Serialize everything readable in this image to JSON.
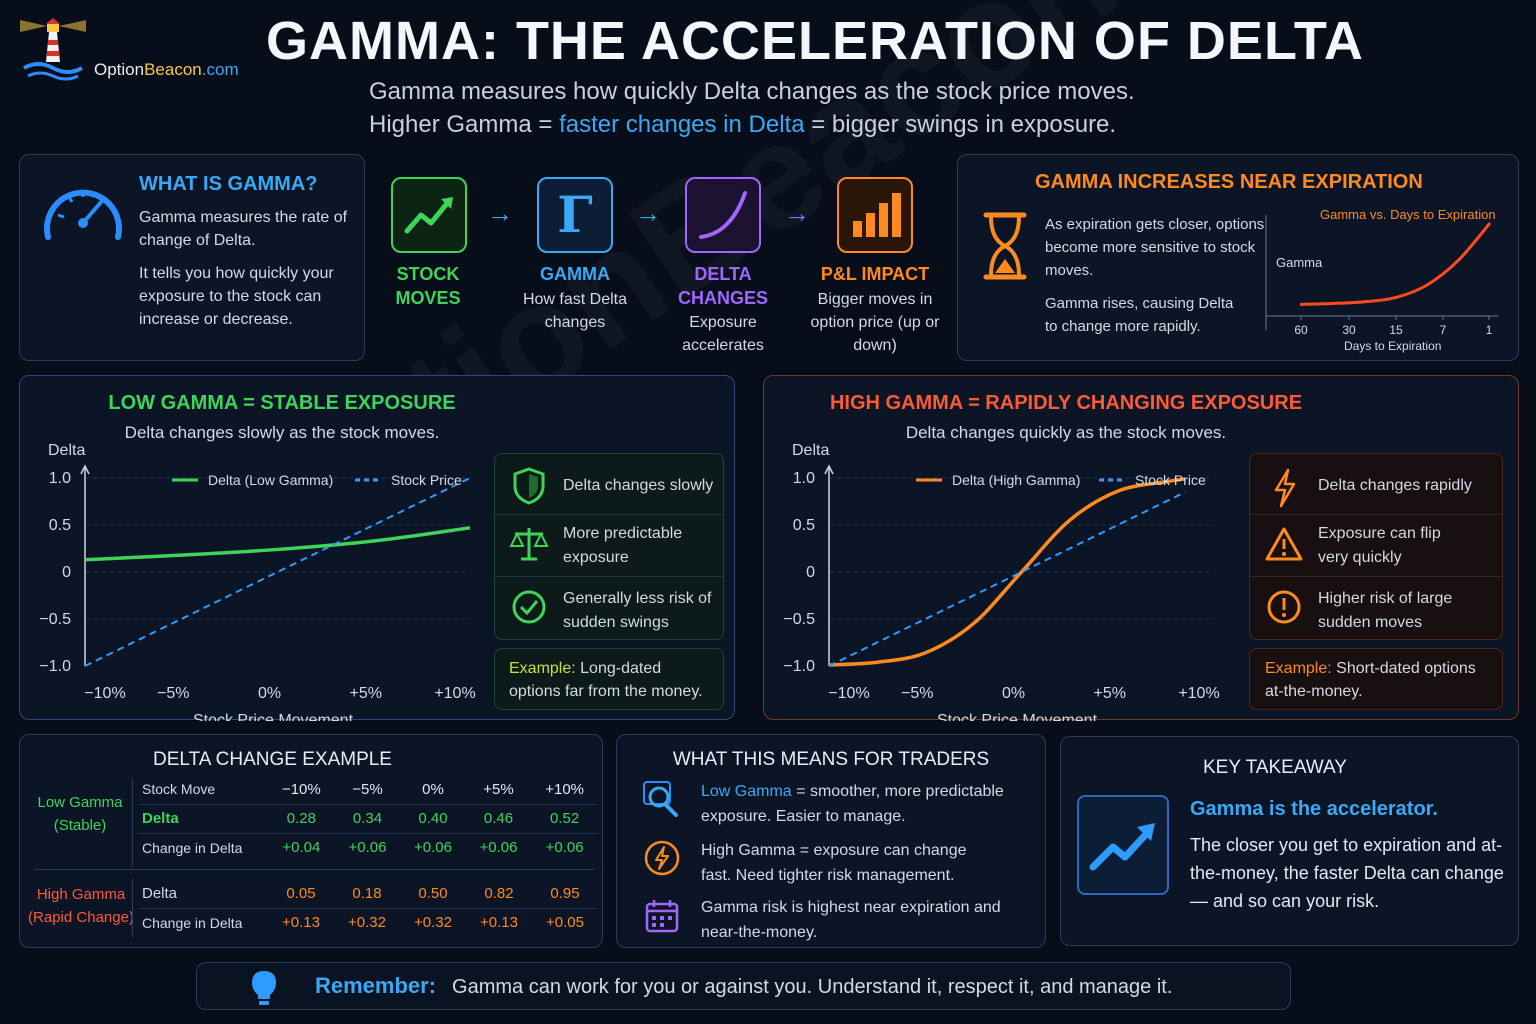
{
  "brand": {
    "name_part1": "Option",
    "name_part2": "Beacon",
    "name_part3": ".com"
  },
  "watermark": "OptionBeacon.com",
  "header": {
    "title": "GAMMA: THE ACCELERATION OF DELTA",
    "subtitle_line1": "Gamma measures how quickly Delta changes as the stock price moves.",
    "subtitle_line2_a": "Higher Gamma = ",
    "subtitle_line2_b": "faster changes in Delta",
    "subtitle_line2_c": " = bigger swings in exposure."
  },
  "what_is": {
    "title": "WHAT IS GAMMA?",
    "p1": "Gamma measures the rate of change of Delta.",
    "p2": "It tells you how quickly your exposure to the stock can increase or decrease."
  },
  "flow": [
    {
      "title": "STOCK MOVES",
      "desc": "",
      "icon": "trend-up-icon",
      "color": "#3fd35a"
    },
    {
      "title": "GAMMA",
      "desc": "How fast Delta changes",
      "icon": "gamma-icon",
      "color": "#3aa9f5"
    },
    {
      "title": "DELTA CHANGES",
      "desc": "Exposure accelerates",
      "icon": "curve-icon",
      "color": "#a066ff"
    },
    {
      "title": "P&L IMPACT",
      "desc": "Bigger moves in option price (up or down)",
      "icon": "bar-chart-icon",
      "color": "#ff8a1f"
    }
  ],
  "expiration": {
    "title": "GAMMA INCREASES NEAR EXPIRATION",
    "p1": "As expiration gets closer, options become more sensitive to stock moves.",
    "p2": "Gamma rises, causing Delta to change more rapidly.",
    "chart_title": "Gamma vs. Days to Expiration",
    "ylabel": "Gamma",
    "xlabel": "Days to Expiration",
    "ticks": [
      "60",
      "30",
      "15",
      "7",
      "1"
    ]
  },
  "low_gamma": {
    "title": "LOW GAMMA = STABLE EXPOSURE",
    "subtitle": "Delta changes slowly as the stock moves.",
    "bullets": [
      "Delta changes slowly",
      "More predictable exposure",
      "Generally less risk of sudden swings"
    ],
    "example_label": "Example:",
    "example_text": " Long-dated options far from the money."
  },
  "high_gamma": {
    "title": "HIGH GAMMA = RAPIDLY CHANGING EXPOSURE",
    "subtitle": "Delta changes quickly as the stock moves.",
    "bullets": [
      "Delta changes rapidly",
      "Exposure can flip very quickly",
      "Higher risk of large sudden moves"
    ],
    "example_label": "Example:",
    "example_text": " Short-dated options at-the-money."
  },
  "chart_data": [
    {
      "type": "line",
      "title": "",
      "xlabel": "Stock Price Movement",
      "ylabel": "Delta",
      "x_ticks": [
        "−10%",
        "−5%",
        "0%",
        "+5%",
        "+10%"
      ],
      "y_ticks": [
        "1.0",
        "0.5",
        "0",
        "−0.5",
        "−1.0"
      ],
      "x": [
        -10,
        -5,
        0,
        5,
        10
      ],
      "ylim": [
        -1,
        1
      ],
      "series": [
        {
          "name": "Delta (Low Gamma)",
          "values": [
            0.13,
            0.18,
            0.24,
            0.33,
            0.47
          ],
          "color": "#3fd35a"
        },
        {
          "name": "Stock Price",
          "values": [
            -1.0,
            -0.5,
            0.0,
            0.5,
            1.0
          ],
          "color": "#2f9bff",
          "style": "dashed"
        }
      ]
    },
    {
      "type": "line",
      "title": "",
      "xlabel": "Stock Price Movement",
      "ylabel": "Delta",
      "x_ticks": [
        "−10%",
        "−5%",
        "0%",
        "+5%",
        "+10%"
      ],
      "y_ticks": [
        "1.0",
        "0.5",
        "0",
        "−0.5",
        "−1.0"
      ],
      "x": [
        -10,
        -7.5,
        -5,
        -2.5,
        0,
        2.5,
        5,
        7.5,
        8.5
      ],
      "ylim": [
        -1,
        1
      ],
      "series": [
        {
          "name": "Delta (High Gamma)",
          "values": [
            -0.99,
            -0.96,
            -0.86,
            -0.55,
            0.0,
            0.55,
            0.86,
            0.96,
            0.99
          ],
          "color": "#ff8a1f"
        },
        {
          "name": "Stock Price",
          "values": [
            -1.0,
            -0.75,
            -0.5,
            -0.25,
            0.0,
            0.25,
            0.5,
            0.75,
            0.85
          ],
          "color": "#2f9bff",
          "style": "dashed"
        }
      ]
    },
    {
      "type": "line",
      "title": "Gamma vs. Days to Expiration",
      "xlabel": "Days to Expiration",
      "ylabel": "Gamma",
      "x_ticks": [
        "60",
        "30",
        "15",
        "7",
        "1"
      ],
      "series": [
        {
          "name": "",
          "values": [
            0.02,
            0.03,
            0.05,
            0.1,
            0.25,
            0.55,
            1.0
          ],
          "color": "#ff4a1f"
        }
      ]
    }
  ],
  "delta_table": {
    "title": "DELTA CHANGE EXAMPLE",
    "low_label": "Low Gamma",
    "low_sub": "(Stable)",
    "high_label": "High Gamma",
    "high_sub": "(Rapid Change)",
    "header": [
      "Stock Move",
      "−10%",
      "−5%",
      "0%",
      "+5%",
      "+10%"
    ],
    "low_rows": [
      [
        "Delta",
        "0.28",
        "0.34",
        "0.40",
        "0.46",
        "0.52"
      ],
      [
        "Change in Delta",
        "+0.04",
        "+0.06",
        "+0.06",
        "+0.06",
        "+0.06"
      ]
    ],
    "high_rows": [
      [
        "Delta",
        "0.05",
        "0.18",
        "0.50",
        "0.82",
        "0.95"
      ],
      [
        "Change in Delta",
        "+0.13",
        "+0.32",
        "+0.32",
        "+0.13",
        "+0.05"
      ]
    ]
  },
  "traders": {
    "title": "WHAT THIS MEANS FOR TRADERS",
    "item1_a": "Low Gamma",
    "item1_b": " = smoother, more predictable exposure. Easier to manage.",
    "item2": "High Gamma = exposure can change fast. Need tighter risk management.",
    "item3": "Gamma risk is highest near expiration and near-the-money."
  },
  "takeaway": {
    "title": "KEY TAKEAWAY",
    "headline": "Gamma is the accelerator.",
    "text": "The closer you get to expiration and at-the-money, the faster Delta can change — and so can your risk."
  },
  "remember": {
    "label": "Remember:",
    "text": "Gamma can work for you or against you. Understand it, respect it, and manage it."
  }
}
